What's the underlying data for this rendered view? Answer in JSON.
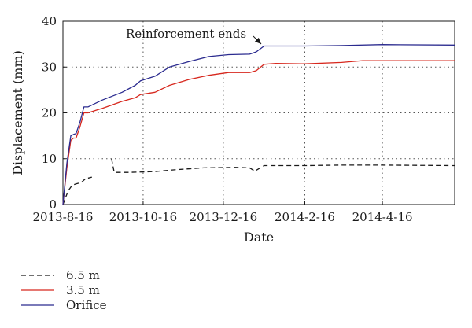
{
  "chart_data": {
    "type": "line",
    "xlabel": "Date",
    "ylabel": "Displacement (mm)",
    "xlim": [
      "2013-08-16",
      "2014-06-10"
    ],
    "ylim": [
      0,
      40
    ],
    "x_ticks": [
      "2013-8-16",
      "2013-10-16",
      "2013-12-16",
      "2014-2-16",
      "2014-4-16"
    ],
    "y_ticks": [
      0,
      10,
      20,
      30,
      40
    ],
    "grid": true,
    "legend_position": "below",
    "annotation": {
      "text": "Reinforcement ends",
      "target": {
        "x": "2014-01-15",
        "y": 34.5
      }
    },
    "series": [
      {
        "name": "6.5 m",
        "color": "#1a1a1a",
        "style": "dashed",
        "segments": [
          [
            {
              "x": "2013-08-16",
              "y": 0
            },
            {
              "x": "2013-08-18",
              "y": 1.5
            },
            {
              "x": "2013-08-20",
              "y": 3.0
            },
            {
              "x": "2013-08-23",
              "y": 4.2
            },
            {
              "x": "2013-08-26",
              "y": 4.5
            },
            {
              "x": "2013-08-30",
              "y": 4.8
            },
            {
              "x": "2013-09-02",
              "y": 5.6
            },
            {
              "x": "2013-09-07",
              "y": 6.0
            }
          ],
          [
            {
              "x": "2013-09-22",
              "y": 10.0
            },
            {
              "x": "2013-09-24",
              "y": 7.0
            },
            {
              "x": "2013-10-05",
              "y": 7.0
            },
            {
              "x": "2013-10-25",
              "y": 7.2
            },
            {
              "x": "2013-11-10",
              "y": 7.6
            },
            {
              "x": "2013-12-01",
              "y": 8.0
            },
            {
              "x": "2013-12-25",
              "y": 8.1
            },
            {
              "x": "2014-01-05",
              "y": 8.0
            },
            {
              "x": "2014-01-09",
              "y": 7.3
            },
            {
              "x": "2014-01-16",
              "y": 8.5
            },
            {
              "x": "2014-02-16",
              "y": 8.5
            },
            {
              "x": "2014-03-16",
              "y": 8.6
            },
            {
              "x": "2014-04-16",
              "y": 8.6
            },
            {
              "x": "2014-06-10",
              "y": 8.5
            }
          ]
        ]
      },
      {
        "name": "3.5 m",
        "color": "#d7281e",
        "style": "solid",
        "segments": [
          [
            {
              "x": "2013-08-16",
              "y": 0
            },
            {
              "x": "2013-08-19",
              "y": 8.0
            },
            {
              "x": "2013-08-22",
              "y": 14.0
            },
            {
              "x": "2013-08-24",
              "y": 14.5
            },
            {
              "x": "2013-08-26",
              "y": 14.5
            },
            {
              "x": "2013-08-29",
              "y": 17.0
            },
            {
              "x": "2013-09-01",
              "y": 20.0
            },
            {
              "x": "2013-09-04",
              "y": 20.0
            },
            {
              "x": "2013-09-15",
              "y": 21.0
            },
            {
              "x": "2013-09-30",
              "y": 22.5
            },
            {
              "x": "2013-10-10",
              "y": 23.3
            },
            {
              "x": "2013-10-14",
              "y": 24.0
            },
            {
              "x": "2013-10-25",
              "y": 24.5
            },
            {
              "x": "2013-11-05",
              "y": 26.0
            },
            {
              "x": "2013-11-20",
              "y": 27.3
            },
            {
              "x": "2013-12-05",
              "y": 28.2
            },
            {
              "x": "2013-12-20",
              "y": 28.8
            },
            {
              "x": "2014-01-05",
              "y": 28.8
            },
            {
              "x": "2014-01-10",
              "y": 29.2
            },
            {
              "x": "2014-01-16",
              "y": 30.6
            },
            {
              "x": "2014-01-25",
              "y": 30.8
            },
            {
              "x": "2014-02-16",
              "y": 30.7
            },
            {
              "x": "2014-03-16",
              "y": 31.0
            },
            {
              "x": "2014-04-01",
              "y": 31.4
            },
            {
              "x": "2014-04-16",
              "y": 31.4
            },
            {
              "x": "2014-06-10",
              "y": 31.4
            }
          ]
        ]
      },
      {
        "name": "Orifice",
        "color": "#2b2b8f",
        "style": "solid",
        "segments": [
          [
            {
              "x": "2013-08-16",
              "y": 0
            },
            {
              "x": "2013-08-19",
              "y": 9.0
            },
            {
              "x": "2013-08-22",
              "y": 15.0
            },
            {
              "x": "2013-08-24",
              "y": 15.3
            },
            {
              "x": "2013-08-26",
              "y": 15.5
            },
            {
              "x": "2013-08-29",
              "y": 18.0
            },
            {
              "x": "2013-09-01",
              "y": 21.3
            },
            {
              "x": "2013-09-04",
              "y": 21.3
            },
            {
              "x": "2013-09-15",
              "y": 22.8
            },
            {
              "x": "2013-09-30",
              "y": 24.5
            },
            {
              "x": "2013-10-10",
              "y": 26.0
            },
            {
              "x": "2013-10-14",
              "y": 27.0
            },
            {
              "x": "2013-10-25",
              "y": 28.0
            },
            {
              "x": "2013-11-05",
              "y": 30.0
            },
            {
              "x": "2013-11-20",
              "y": 31.2
            },
            {
              "x": "2013-12-05",
              "y": 32.3
            },
            {
              "x": "2013-12-20",
              "y": 32.7
            },
            {
              "x": "2014-01-05",
              "y": 32.8
            },
            {
              "x": "2014-01-10",
              "y": 33.3
            },
            {
              "x": "2014-01-16",
              "y": 34.6
            },
            {
              "x": "2014-01-25",
              "y": 34.6
            },
            {
              "x": "2014-02-16",
              "y": 34.6
            },
            {
              "x": "2014-03-16",
              "y": 34.7
            },
            {
              "x": "2014-04-16",
              "y": 34.9
            },
            {
              "x": "2014-06-10",
              "y": 34.8
            }
          ]
        ]
      }
    ]
  }
}
